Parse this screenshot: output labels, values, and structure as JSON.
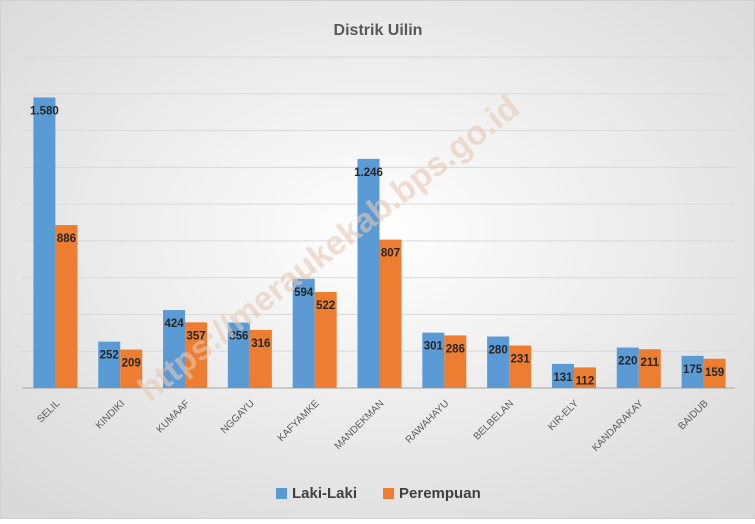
{
  "chart_data": {
    "type": "bar",
    "title": "Distrik Uilin",
    "watermark": "https://meraukekab.bps.go.id",
    "categories": [
      "SELIL",
      "KINDIKI",
      "KUMAAF",
      "NGGAYU",
      "KAFYAMKE",
      "MANDEKMAN",
      "RAWAHAYU",
      "BELBELAN",
      "KIR-ELY",
      "KANDARAKAY",
      "BAIDUB"
    ],
    "series": [
      {
        "name": "Laki-Laki",
        "color": "#5b9bd5",
        "values": [
          1580,
          252,
          424,
          356,
          594,
          1246,
          301,
          280,
          131,
          220,
          175
        ],
        "value_labels": [
          "1.580",
          "252",
          "424",
          "356",
          "594",
          "1.246",
          "301",
          "280",
          "131",
          "220",
          "175"
        ]
      },
      {
        "name": "Perempuan",
        "color": "#ed7d31",
        "values": [
          886,
          209,
          357,
          316,
          522,
          807,
          286,
          231,
          112,
          211,
          159
        ],
        "value_labels": [
          "886",
          "209",
          "357",
          "316",
          "522",
          "807",
          "286",
          "231",
          "112",
          "211",
          "159"
        ]
      }
    ],
    "ylim": [
      0,
      1800
    ],
    "yticks": [
      0,
      200,
      400,
      600,
      800,
      1000,
      1200,
      1400,
      1600,
      1800
    ],
    "grid": true,
    "legend": "bottom"
  }
}
